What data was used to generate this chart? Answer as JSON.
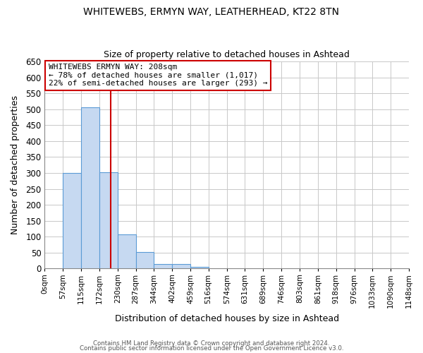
{
  "title": "WHITEWEBS, ERMYN WAY, LEATHERHEAD, KT22 8TN",
  "subtitle": "Size of property relative to detached houses in Ashtead",
  "xlabel": "Distribution of detached houses by size in Ashtead",
  "ylabel": "Number of detached properties",
  "bin_edges": [
    0,
    57,
    115,
    172,
    230,
    287,
    344,
    402,
    459,
    516,
    574,
    631,
    689,
    746,
    803,
    861,
    918,
    976,
    1033,
    1090,
    1148
  ],
  "bin_labels": [
    "0sqm",
    "57sqm",
    "115sqm",
    "172sqm",
    "230sqm",
    "287sqm",
    "344sqm",
    "402sqm",
    "459sqm",
    "516sqm",
    "574sqm",
    "631sqm",
    "689sqm",
    "746sqm",
    "803sqm",
    "861sqm",
    "918sqm",
    "976sqm",
    "1033sqm",
    "1090sqm",
    "1148sqm"
  ],
  "counts": [
    0,
    300,
    507,
    302,
    108,
    53,
    14,
    14,
    5,
    0,
    0,
    0,
    0,
    0,
    0,
    0,
    0,
    0,
    0,
    0
  ],
  "bar_color": "#c6d9f1",
  "bar_edge_color": "#5b9bd5",
  "vline_x": 208,
  "vline_color": "#cc0000",
  "ylim": [
    0,
    650
  ],
  "yticks": [
    0,
    50,
    100,
    150,
    200,
    250,
    300,
    350,
    400,
    450,
    500,
    550,
    600,
    650
  ],
  "annotation_title": "WHITEWEBS ERMYN WAY: 208sqm",
  "annotation_line1": "← 78% of detached houses are smaller (1,017)",
  "annotation_line2": "22% of semi-detached houses are larger (293) →",
  "annotation_box_color": "#ffffff",
  "annotation_box_edge": "#cc0000",
  "footer1": "Contains HM Land Registry data © Crown copyright and database right 2024.",
  "footer2": "Contains public sector information licensed under the Open Government Licence v3.0.",
  "background_color": "#ffffff",
  "grid_color": "#c8c8c8"
}
